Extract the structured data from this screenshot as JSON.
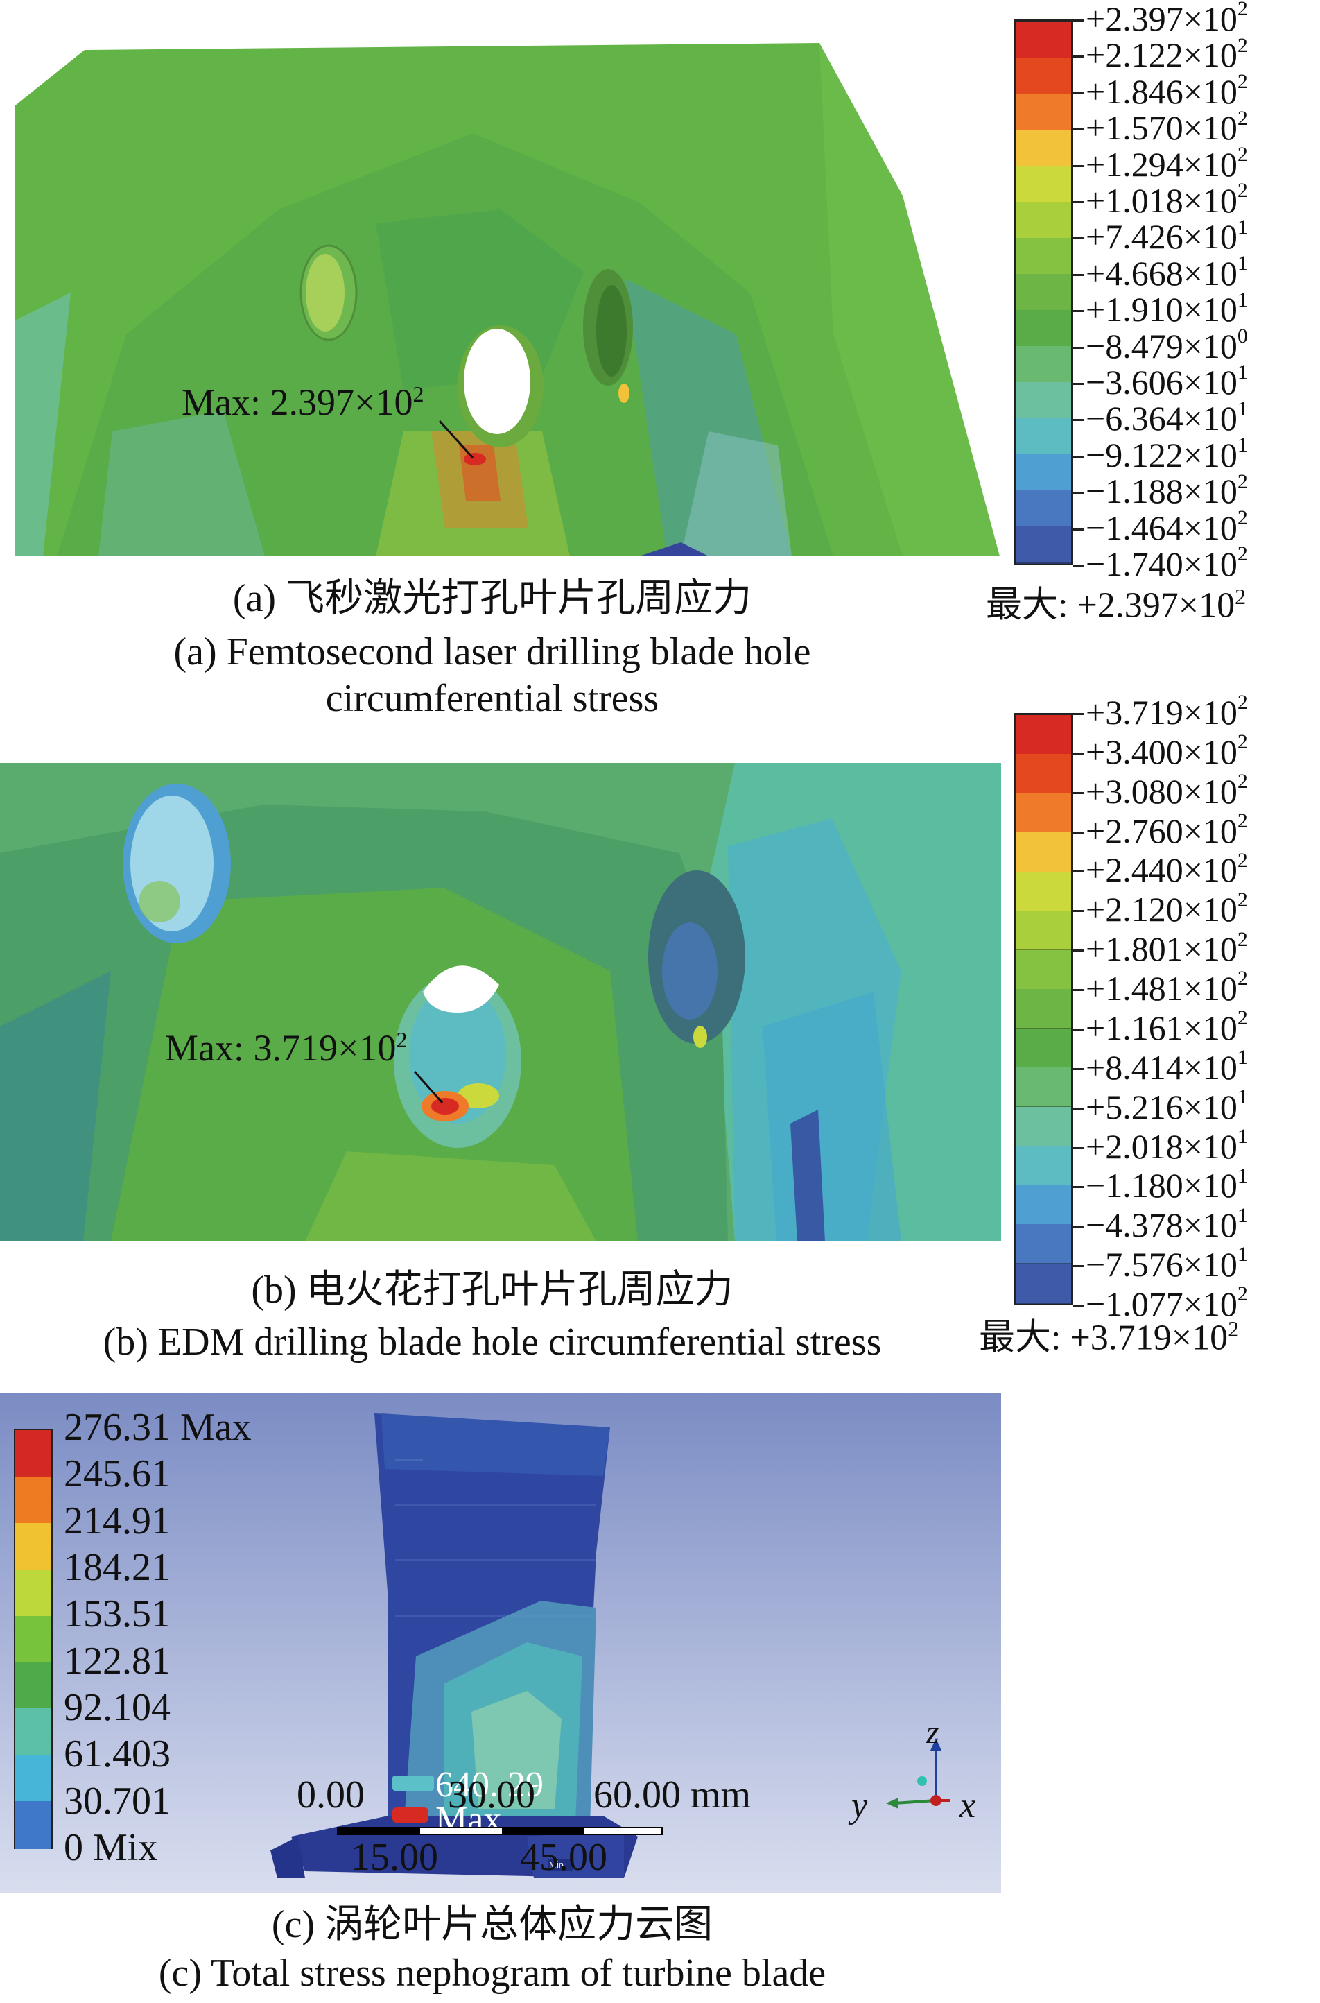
{
  "panel_a": {
    "max_annotation_prefix": "Max: 2.397×10",
    "max_annotation_exp": "2",
    "caption_zh": "(a) 飞秒激光打孔叶片孔周应力",
    "caption_en_line1": "(a) Femtosecond laser drilling blade hole",
    "caption_en_line2": "circumferential stress",
    "legend": {
      "labels": [
        {
          "mantissa": "+2.397×10",
          "exp": "2"
        },
        {
          "mantissa": "+2.122×10",
          "exp": "2"
        },
        {
          "mantissa": "+1.846×10",
          "exp": "2"
        },
        {
          "mantissa": "+1.570×10",
          "exp": "2"
        },
        {
          "mantissa": "+1.294×10",
          "exp": "2"
        },
        {
          "mantissa": "+1.018×10",
          "exp": "2"
        },
        {
          "mantissa": "+7.426×10",
          "exp": "1"
        },
        {
          "mantissa": "+4.668×10",
          "exp": "1"
        },
        {
          "mantissa": "+1.910×10",
          "exp": "1"
        },
        {
          "mantissa": "−8.479×10",
          "exp": "0"
        },
        {
          "mantissa": "−3.606×10",
          "exp": "1"
        },
        {
          "mantissa": "−6.364×10",
          "exp": "1"
        },
        {
          "mantissa": "−9.122×10",
          "exp": "1"
        },
        {
          "mantissa": "−1.188×10",
          "exp": "2"
        },
        {
          "mantissa": "−1.464×10",
          "exp": "2"
        },
        {
          "mantissa": "−1.740×10",
          "exp": "2"
        }
      ],
      "max_prefix": "最大: +2.397×10",
      "max_exp": "2"
    }
  },
  "panel_b": {
    "max_annotation_prefix": "Max: 3.719×10",
    "max_annotation_exp": "2",
    "caption_zh": "(b) 电火花打孔叶片孔周应力",
    "caption_en": "(b) EDM drilling blade hole circumferential stress",
    "legend": {
      "labels": [
        {
          "mantissa": "+3.719×10",
          "exp": "2"
        },
        {
          "mantissa": "+3.400×10",
          "exp": "2"
        },
        {
          "mantissa": "+3.080×10",
          "exp": "2"
        },
        {
          "mantissa": "+2.760×10",
          "exp": "2"
        },
        {
          "mantissa": "+2.440×10",
          "exp": "2"
        },
        {
          "mantissa": "+2.120×10",
          "exp": "2"
        },
        {
          "mantissa": "+1.801×10",
          "exp": "2"
        },
        {
          "mantissa": "+1.481×10",
          "exp": "2"
        },
        {
          "mantissa": "+1.161×10",
          "exp": "2"
        },
        {
          "mantissa": "+8.414×10",
          "exp": "1"
        },
        {
          "mantissa": "+5.216×10",
          "exp": "1"
        },
        {
          "mantissa": "+2.018×10",
          "exp": "1"
        },
        {
          "mantissa": "−1.180×10",
          "exp": "1"
        },
        {
          "mantissa": "−4.378×10",
          "exp": "1"
        },
        {
          "mantissa": "−7.576×10",
          "exp": "1"
        },
        {
          "mantissa": "−1.077×10",
          "exp": "2"
        }
      ],
      "max_prefix": "最大: +3.719×10",
      "max_exp": "2"
    }
  },
  "panel_c": {
    "legend_labels": [
      "276.31 Max",
      "245.61",
      "214.91",
      "184.21",
      "153.51",
      "122.81",
      "92.104",
      "61.403",
      "30.701",
      "0 Mix"
    ],
    "probe_value": "640. 29",
    "probe_max": "Max",
    "min_tag": "Min",
    "scale_top": [
      "0.00",
      "30.00",
      "60.00 mm"
    ],
    "scale_bottom": [
      "15.00",
      "45.00"
    ],
    "axis_z": "z",
    "axis_y": "y",
    "axis_x": "x",
    "caption_zh": "(c) 涡轮叶片总体应力云图",
    "caption_en": "(c) Total stress nephogram of turbine blade"
  },
  "colors": {
    "colormap": [
      "#d62a22",
      "#e4481f",
      "#ee7a2a",
      "#f2c23a",
      "#ccd93d",
      "#a9cf3d",
      "#86c241",
      "#6db646",
      "#5aac49",
      "#6ab971",
      "#6cc0a0",
      "#5cbcc2",
      "#4f9fd3",
      "#4a78c0",
      "#3e5aa9",
      "#34459b"
    ],
    "ansys_colormap": [
      "#d22a22",
      "#ee7a22",
      "#f0c232",
      "#bcd83a",
      "#78c33c",
      "#4fab4a",
      "#5cc0a6",
      "#45b6d8",
      "#3f78c8",
      "#2b3b98"
    ],
    "hole_background": "#ffffff",
    "ansys_bg_top": "#7b8cc4",
    "ansys_bg_bottom": "#d9deef"
  }
}
